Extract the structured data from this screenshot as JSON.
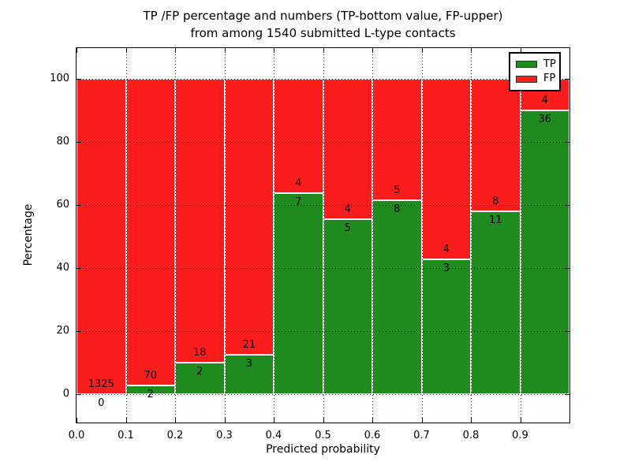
{
  "title": {
    "line1": "TP /FP percentage and numbers (TP-bottom value, FP-upper)",
    "line2": "from among 1540 submitted L-type contacts"
  },
  "chart_data": {
    "type": "bar",
    "stacked": true,
    "title": "TP /FP percentage and numbers (TP-bottom value, FP-upper)\nfrom among 1540 submitted L-type contacts",
    "xlabel": "Predicted probability",
    "ylabel": "Percentage",
    "total_contacts": 1540,
    "xlim": [
      0.0,
      1.0
    ],
    "ylim": [
      -9,
      109.75
    ],
    "x_tick_labels": [
      "0.0",
      "0.1",
      "0.2",
      "0.3",
      "0.4",
      "0.5",
      "0.6",
      "0.7",
      "0.8",
      "0.9"
    ],
    "y_tick_values": [
      0,
      20,
      40,
      60,
      80,
      100
    ],
    "grid": true,
    "legend": {
      "position": "upper-right",
      "entries": [
        {
          "label": "TP",
          "color": "#1f8b1f"
        },
        {
          "label": "FP",
          "color": "#fb1c1c"
        }
      ]
    },
    "bins": [
      {
        "range": [
          0.0,
          0.1
        ],
        "tp": 0,
        "fp": 1325,
        "tp_pct": 0
      },
      {
        "range": [
          0.1,
          0.2
        ],
        "tp": 2,
        "fp": 70,
        "tp_pct": 2.78
      },
      {
        "range": [
          0.2,
          0.3
        ],
        "tp": 2,
        "fp": 18,
        "tp_pct": 10
      },
      {
        "range": [
          0.3,
          0.4
        ],
        "tp": 3,
        "fp": 21,
        "tp_pct": 12.5
      },
      {
        "range": [
          0.4,
          0.5
        ],
        "tp": 7,
        "fp": 4,
        "tp_pct": 63.64
      },
      {
        "range": [
          0.5,
          0.6
        ],
        "tp": 5,
        "fp": 4,
        "tp_pct": 55.56
      },
      {
        "range": [
          0.6,
          0.7
        ],
        "tp": 8,
        "fp": 5,
        "tp_pct": 61.54
      },
      {
        "range": [
          0.7,
          0.8
        ],
        "tp": 3,
        "fp": 4,
        "tp_pct": 42.86
      },
      {
        "range": [
          0.8,
          0.9
        ],
        "tp": 11,
        "fp": 8,
        "tp_pct": 57.89
      },
      {
        "range": [
          0.9,
          1.0
        ],
        "tp": 36,
        "fp": 4,
        "tp_pct": 90
      }
    ],
    "colors": {
      "tp": "#1f8b1f",
      "fp": "#fb1c1c",
      "grid": "#000000",
      "axis": "#000000",
      "text": "#000000",
      "bar_edge": "#ffffff",
      "background": "#ffffff"
    }
  }
}
